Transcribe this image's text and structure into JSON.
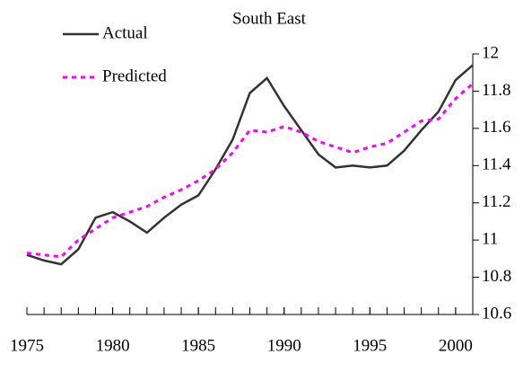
{
  "chart_data": {
    "type": "line",
    "title": "South East",
    "x": [
      1975,
      1976,
      1977,
      1978,
      1979,
      1980,
      1981,
      1982,
      1983,
      1984,
      1985,
      1986,
      1987,
      1988,
      1989,
      1990,
      1991,
      1992,
      1993,
      1994,
      1995,
      1996,
      1997,
      1998,
      1999,
      2000,
      2001
    ],
    "series": [
      {
        "name": "Actual",
        "color": "#333333",
        "dash": false,
        "values": [
          10.92,
          10.89,
          10.87,
          10.95,
          11.12,
          11.15,
          11.1,
          11.04,
          11.12,
          11.19,
          11.24,
          11.38,
          11.54,
          11.79,
          11.87,
          11.72,
          11.59,
          11.46,
          11.39,
          11.4,
          11.39,
          11.4,
          11.48,
          11.59,
          11.69,
          11.86,
          11.94
        ]
      },
      {
        "name": "Predicted",
        "color": "#ff00ff",
        "dash": true,
        "values": [
          10.93,
          10.92,
          10.91,
          11.0,
          11.06,
          11.12,
          11.15,
          11.18,
          11.23,
          11.27,
          11.32,
          11.38,
          11.47,
          11.59,
          11.58,
          11.61,
          11.58,
          11.53,
          11.5,
          11.47,
          11.5,
          11.52,
          11.58,
          11.64,
          11.65,
          11.76,
          11.84
        ]
      }
    ],
    "xlim": [
      1975,
      2001
    ],
    "xticks": [
      1975,
      1980,
      1985,
      1990,
      1995,
      2000
    ],
    "xminorticks": [
      1975,
      1976,
      1977,
      1978,
      1979,
      1980,
      1981,
      1982,
      1983,
      1984,
      1985,
      1986,
      1987,
      1988,
      1989,
      1990,
      1991,
      1992,
      1993,
      1994,
      1995,
      1996,
      1997,
      1998,
      1999,
      2000,
      2001
    ],
    "ylim": [
      10.6,
      12
    ],
    "yticks": [
      10.6,
      10.8,
      11,
      11.2,
      11.4,
      11.6,
      11.8,
      12
    ],
    "grid": false,
    "legend": "upper left"
  }
}
